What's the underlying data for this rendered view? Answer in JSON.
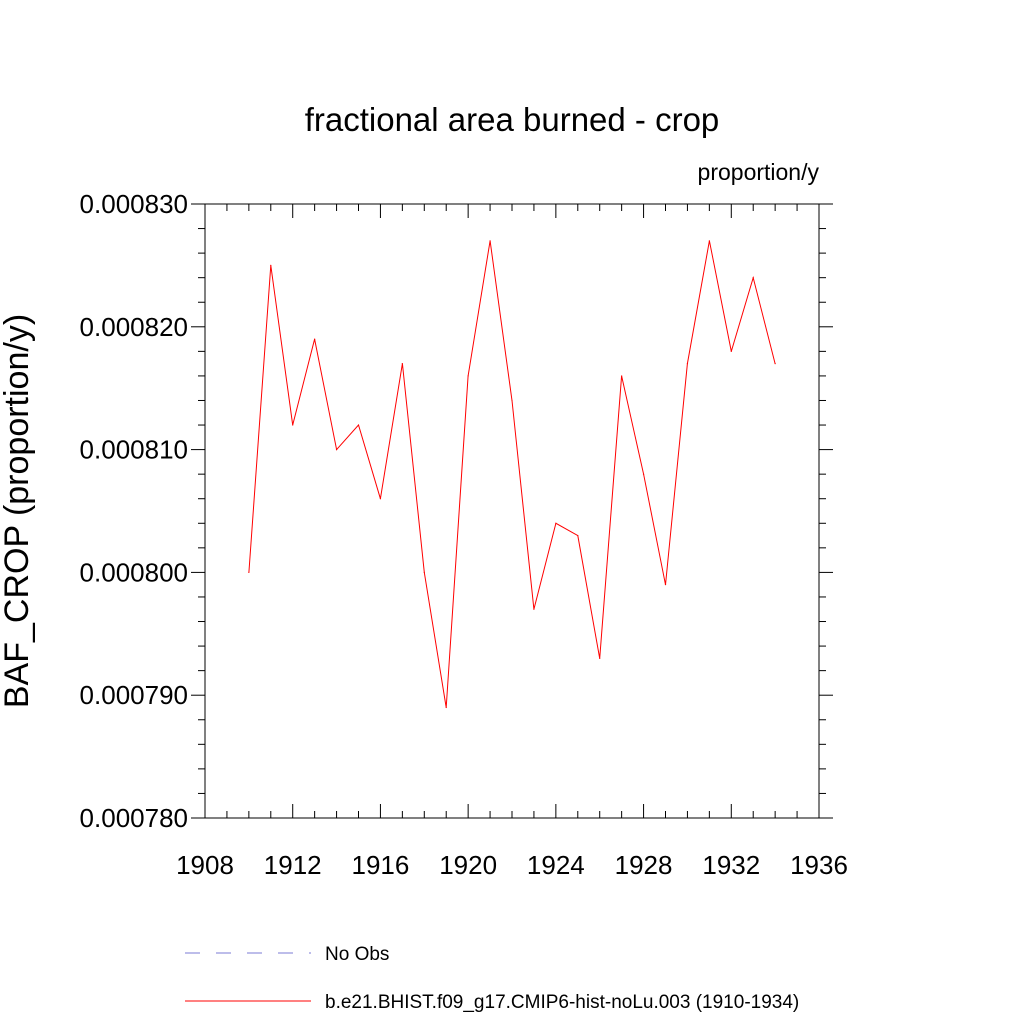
{
  "chart_data": {
    "type": "line",
    "title": "fractional area burned - crop",
    "units_label": "proportion/y",
    "ylabel": "BAF_CROP  (proportion/y)",
    "xlabel": "",
    "xlim": [
      1908,
      1936
    ],
    "ylim": [
      0.00078,
      0.00083
    ],
    "x_ticks": [
      1908,
      1912,
      1916,
      1920,
      1924,
      1928,
      1932,
      1936
    ],
    "x_tick_labels": [
      "1908",
      "1912",
      "1916",
      "1920",
      "1924",
      "1928",
      "1932",
      "1936"
    ],
    "y_ticks": [
      0.00078,
      0.00079,
      0.0008,
      0.00081,
      0.00082,
      0.00083
    ],
    "y_tick_labels": [
      "0.000780",
      "0.000790",
      "0.000800",
      "0.000810",
      "0.000820",
      "0.000830"
    ],
    "grid": false,
    "legend_position": "bottom",
    "series": [
      {
        "name": "b.e21.BHIST.f09_g17.CMIP6-hist-noLu.003 (1910-1934)",
        "color": "#ff0000",
        "style": "solid",
        "x": [
          1910,
          1911,
          1912,
          1913,
          1914,
          1915,
          1916,
          1917,
          1918,
          1919,
          1920,
          1921,
          1922,
          1923,
          1924,
          1925,
          1926,
          1927,
          1928,
          1929,
          1930,
          1931,
          1932,
          1933,
          1934
        ],
        "values": [
          0.0008,
          0.000825,
          0.000812,
          0.000819,
          0.00081,
          0.000812,
          0.000806,
          0.000817,
          0.0008,
          0.000789,
          0.000816,
          0.000827,
          0.000814,
          0.000797,
          0.000804,
          0.000803,
          0.000793,
          0.000816,
          0.000808,
          0.000799,
          0.000817,
          0.000827,
          0.000818,
          0.000824,
          0.000817
        ]
      }
    ],
    "legend": [
      {
        "label": "No Obs",
        "color": "#7b7bd6",
        "style": "dashed"
      },
      {
        "label": "b.e21.BHIST.f09_g17.CMIP6-hist-noLu.003 (1910-1934)",
        "color": "#ff0000",
        "style": "solid"
      }
    ]
  }
}
